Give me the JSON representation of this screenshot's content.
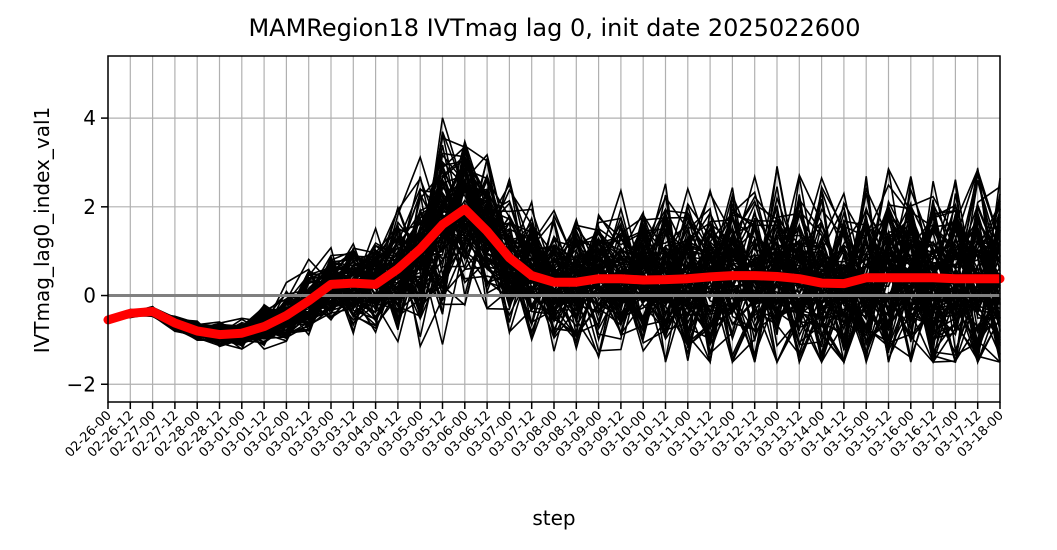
{
  "chart_data": {
    "type": "line",
    "title": "MAMRegion18 IVTmag lag 0, init date 2025022600",
    "xlabel": "step",
    "ylabel": "IVTmag_lag0_index_val1",
    "categories": [
      "02-26-00",
      "02-26-12",
      "02-27-00",
      "02-27-12",
      "02-28-00",
      "02-28-12",
      "03-01-00",
      "03-01-12",
      "03-02-00",
      "03-02-12",
      "03-03-00",
      "03-03-12",
      "03-04-00",
      "03-04-12",
      "03-05-00",
      "03-05-12",
      "03-06-00",
      "03-06-12",
      "03-07-00",
      "03-07-12",
      "03-08-00",
      "03-08-12",
      "03-09-00",
      "03-09-12",
      "03-10-00",
      "03-10-12",
      "03-11-00",
      "03-11-12",
      "03-12-00",
      "03-12-12",
      "03-13-00",
      "03-13-12",
      "03-14-00",
      "03-14-12",
      "03-15-00",
      "03-15-12",
      "03-16-00",
      "03-16-12",
      "03-17-00",
      "03-17-12",
      "03-18-00"
    ],
    "yticks": [
      -2,
      0,
      2,
      4
    ],
    "ytick_labels": [
      "−2",
      "0",
      "2",
      "4"
    ],
    "ylim": [
      -2.4,
      5.4
    ],
    "grid": true,
    "reference_line": {
      "y": 0,
      "color": "#808080"
    },
    "ensemble": {
      "color": "#000000",
      "member_count": 100,
      "spread": [
        0.03,
        0.04,
        0.05,
        0.08,
        0.1,
        0.13,
        0.16,
        0.22,
        0.3,
        0.36,
        0.4,
        0.45,
        0.52,
        0.65,
        0.85,
        0.95,
        0.9,
        0.8,
        0.7,
        0.62,
        0.62,
        0.66,
        0.7,
        0.74,
        0.78,
        0.82,
        0.86,
        0.92,
        0.96,
        0.98,
        0.96,
        0.95,
        0.95,
        0.97,
        1.0,
        1.02,
        1.03,
        1.02,
        1.0,
        0.99,
        0.99
      ]
    },
    "series": [
      {
        "color": "#ff0000",
        "values": [
          -0.55,
          -0.4,
          -0.36,
          -0.62,
          -0.8,
          -0.88,
          -0.85,
          -0.7,
          -0.45,
          -0.12,
          0.25,
          0.28,
          0.25,
          0.6,
          1.05,
          1.6,
          1.95,
          1.45,
          0.85,
          0.45,
          0.3,
          0.3,
          0.38,
          0.38,
          0.35,
          0.36,
          0.38,
          0.42,
          0.45,
          0.45,
          0.43,
          0.38,
          0.28,
          0.27,
          0.4,
          0.4,
          0.4,
          0.4,
          0.38,
          0.38,
          0.38
        ]
      }
    ]
  }
}
